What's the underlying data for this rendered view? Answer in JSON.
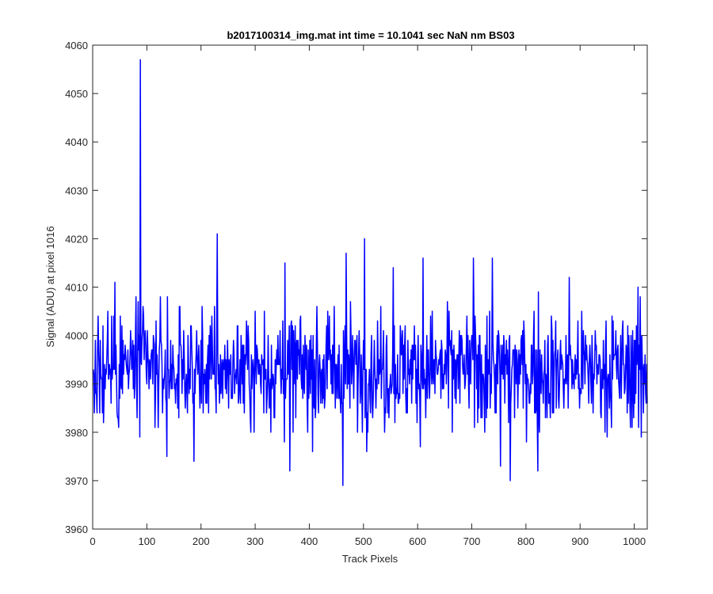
{
  "chart_data": {
    "type": "line",
    "title": "b2017100314_img.mat int time = 10.1041 sec  NaN nm BS03",
    "xlabel": "Track Pixels",
    "ylabel": "Signal (ADU) at pixel 1016",
    "xlim": [
      0,
      1024
    ],
    "ylim": [
      3960,
      4060
    ],
    "xticks": [
      0,
      100,
      200,
      300,
      400,
      500,
      600,
      700,
      800,
      900,
      1000
    ],
    "yticks": [
      3960,
      3970,
      3980,
      3990,
      4000,
      4010,
      4020,
      4030,
      4040,
      4050,
      4060
    ],
    "grid": false,
    "legend": "none",
    "line_color": "#0000ff",
    "series": [
      {
        "x_start": 1,
        "x_step": 1,
        "point_count": 1024,
        "mean": 3993,
        "noise_sd": 6,
        "clip_range": [
          3976,
          4010
        ],
        "spikes": [
          {
            "x": 88,
            "y": 4057
          },
          {
            "x": 230,
            "y": 4021
          },
          {
            "x": 502,
            "y": 4020
          },
          {
            "x": 462,
            "y": 3969
          },
          {
            "x": 771,
            "y": 3970
          },
          {
            "x": 137,
            "y": 3975
          },
          {
            "x": 187,
            "y": 3974
          },
          {
            "x": 364,
            "y": 3972
          },
          {
            "x": 753,
            "y": 3973
          },
          {
            "x": 822,
            "y": 3972
          },
          {
            "x": 468,
            "y": 4017
          },
          {
            "x": 610,
            "y": 4016
          },
          {
            "x": 703,
            "y": 4016
          },
          {
            "x": 738,
            "y": 4016
          },
          {
            "x": 355,
            "y": 4015
          },
          {
            "x": 555,
            "y": 4014
          },
          {
            "x": 880,
            "y": 4012
          },
          {
            "x": 1011,
            "y": 4008
          },
          {
            "x": 80,
            "y": 4008
          },
          {
            "x": 41,
            "y": 4011
          },
          {
            "x": 1013,
            "y": 3979
          },
          {
            "x": 3,
            "y": 3984
          }
        ]
      }
    ]
  }
}
